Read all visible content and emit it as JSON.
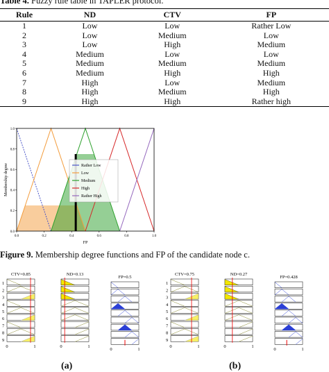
{
  "table": {
    "caption_label": "Table 4.",
    "caption_text": "Fuzzy rule table in TAPLER protocol.",
    "headers": [
      "Rule",
      "ND",
      "CTV",
      "FP"
    ],
    "rows": [
      [
        "1",
        "Low",
        "Low",
        "Rather Low"
      ],
      [
        "2",
        "Low",
        "Medium",
        "Low"
      ],
      [
        "3",
        "Low",
        "High",
        "Medium"
      ],
      [
        "4",
        "Medium",
        "Low",
        "Low"
      ],
      [
        "5",
        "Medium",
        "Medium",
        "Medium"
      ],
      [
        "6",
        "Medium",
        "High",
        "High"
      ],
      [
        "7",
        "High",
        "Low",
        "Medium"
      ],
      [
        "8",
        "High",
        "Medium",
        "High"
      ],
      [
        "9",
        "High",
        "High",
        "Rather high"
      ]
    ]
  },
  "figure9": {
    "caption_label": "Figure 9.",
    "caption_text": "Membership degree functions and FP of the candidate node c.",
    "chart_data": {
      "type": "line",
      "xlabel": "FP",
      "ylabel": "Membership degree",
      "xlim": [
        0,
        1
      ],
      "ylim": [
        0,
        1
      ],
      "xticks": [
        "0.0",
        "0.2",
        "0.4",
        "0.6",
        "0.8",
        "1.0"
      ],
      "yticks": [
        "0.0",
        "0.2",
        "0.4",
        "0.6",
        "0.8",
        "1.0"
      ],
      "legend_position": "center",
      "series": [
        {
          "name": "Rather Low",
          "color": "#4a55c8",
          "x": [
            0,
            0.25
          ],
          "y": [
            1,
            0
          ]
        },
        {
          "name": "Low",
          "color": "#f39c3c",
          "x": [
            0,
            0.25,
            0.5
          ],
          "y": [
            0,
            1,
            0
          ]
        },
        {
          "name": "Medium",
          "color": "#2ca02c",
          "x": [
            0.25,
            0.5,
            0.75
          ],
          "y": [
            0,
            1,
            0
          ]
        },
        {
          "name": "High",
          "color": "#d62728",
          "x": [
            0.5,
            0.75,
            1.0
          ],
          "y": [
            0,
            1,
            0
          ]
        },
        {
          "name": "Rather High",
          "color": "#9467bd",
          "x": [
            0.75,
            1.0
          ],
          "y": [
            0,
            1
          ]
        }
      ],
      "fills": [
        {
          "series": "Low",
          "clip": 0.25,
          "color": "#f39c3c"
        },
        {
          "series": "Medium",
          "clip": 0.75,
          "color": "#2ca02c"
        }
      ],
      "fp_value": 0.43
    }
  },
  "figure10": {
    "panels": [
      {
        "sub": "(a)",
        "ctv_title": "CTV=0.85",
        "nd_title": "ND=0.13",
        "fp_title": "FP=0.5",
        "ctv": 0.85,
        "nd": 0.13,
        "fp": 0.5,
        "rows": [
          "1",
          "2",
          "3",
          "4",
          "5",
          "6",
          "7",
          "8",
          "9"
        ]
      },
      {
        "sub": "(b)",
        "ctv_title": "CTV=0.75",
        "nd_title": "ND=0.27",
        "fp_title": "FP=0.428",
        "ctv": 0.75,
        "nd": 0.27,
        "fp": 0.428,
        "rows": [
          "1",
          "2",
          "3",
          "4",
          "5",
          "6",
          "7",
          "8",
          "9"
        ]
      }
    ],
    "axis_ticks": [
      "0",
      "1"
    ]
  }
}
